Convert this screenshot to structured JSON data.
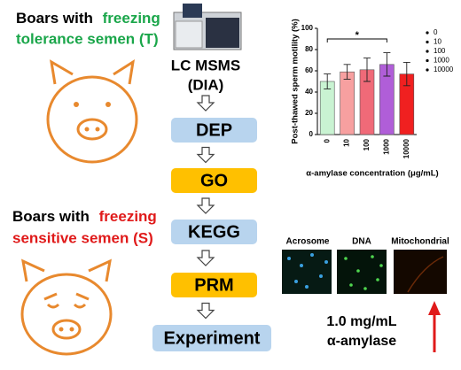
{
  "groups": {
    "tolerant": {
      "prefix": "Boars with",
      "highlight": "freezing",
      "line2": "tolerance semen (T)"
    },
    "sensitive": {
      "prefix": "Boars with",
      "highlight": "freezing",
      "line2": "sensitive semen (S)"
    }
  },
  "method": {
    "line1": "LC MSMS",
    "line2": "(DIA)"
  },
  "steps": [
    "DEP",
    "GO",
    "KEGG",
    "PRM",
    "Experiment"
  ],
  "chart_data": {
    "type": "bar",
    "ylabel": "Post-thawed sperm motility (%)",
    "xlabel": "α-amylase concentration (μg/mL)",
    "categories": [
      "0",
      "10",
      "100",
      "1000",
      "10000"
    ],
    "values": [
      50,
      59,
      61,
      66,
      57
    ],
    "errors": [
      7,
      7,
      11,
      11,
      11
    ],
    "colors": [
      "#c9f3d2",
      "#f7a0a0",
      "#f06a78",
      "#b05ed8",
      "#f02020"
    ],
    "ylim": [
      0,
      100
    ],
    "yticks": [
      0,
      20,
      40,
      60,
      80,
      100
    ],
    "annotation": "*"
  },
  "stains": [
    "Acrosome",
    "DNA",
    "Mitochondrial"
  ],
  "result": {
    "line1": "1.0 mg/mL",
    "line2": "α-amylase"
  }
}
